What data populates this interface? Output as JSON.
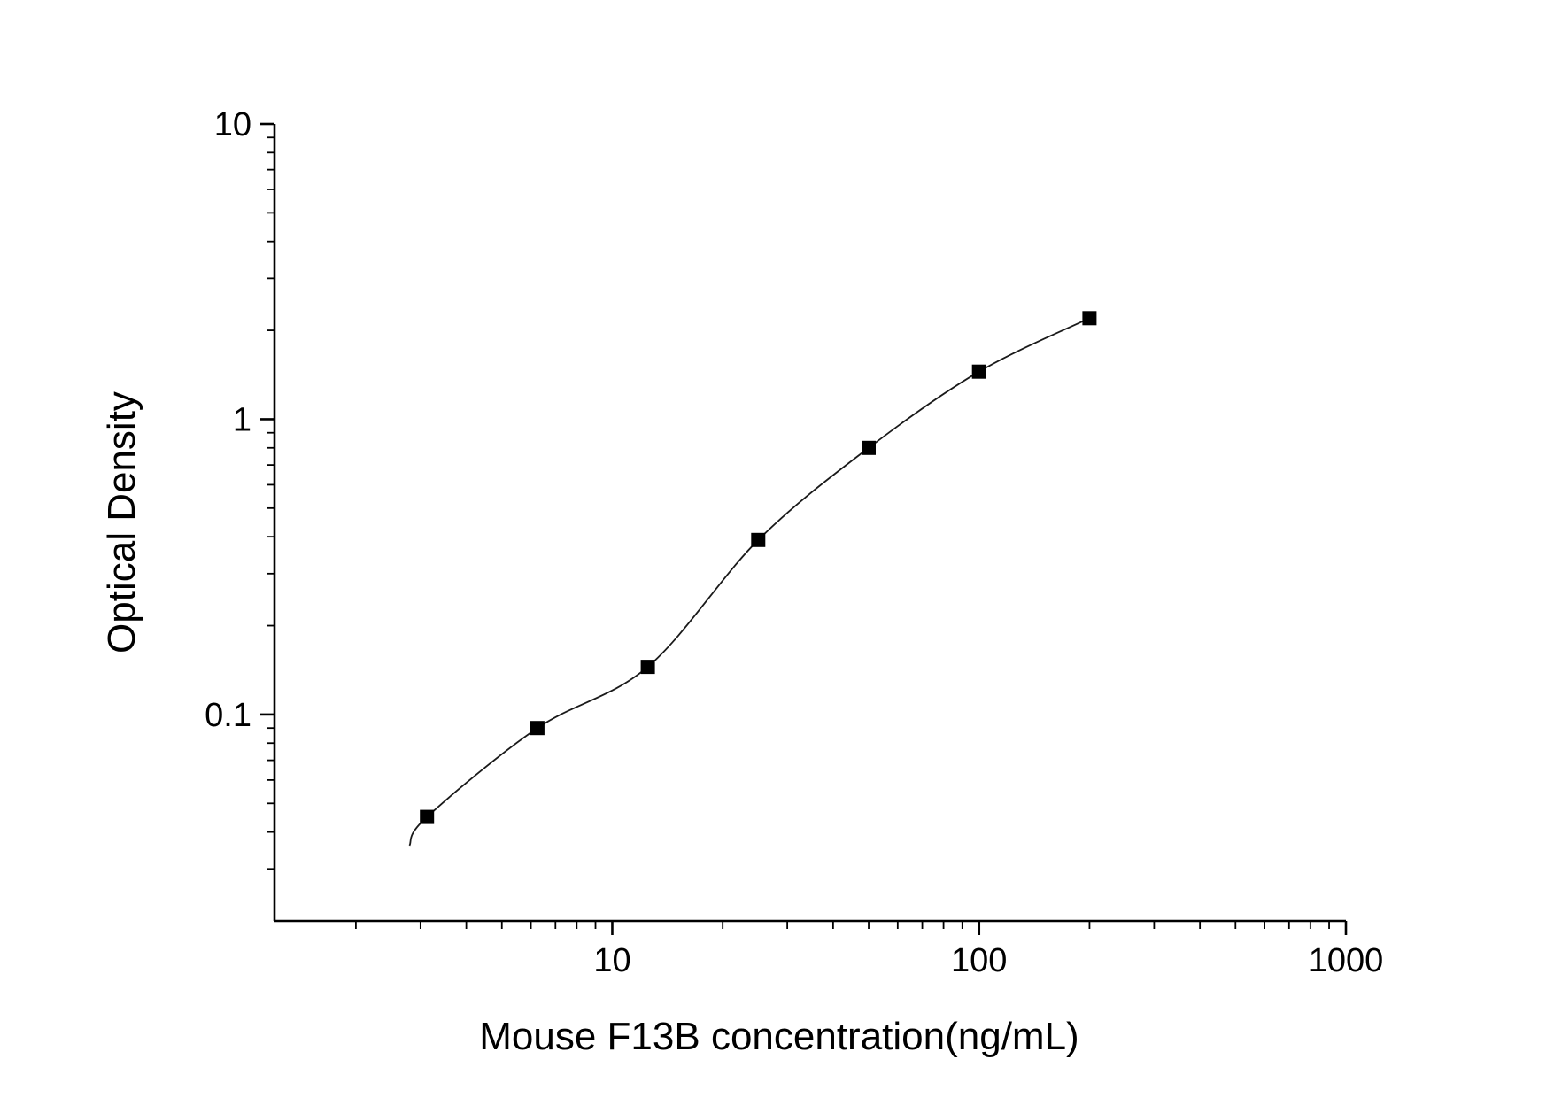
{
  "chart_data": {
    "type": "scatter",
    "title": "",
    "xlabel": "Mouse F13B concentration(ng/mL)",
    "ylabel": "Optical Density",
    "x_scale": "log",
    "y_scale": "log",
    "xlim": [
      1.2,
      1000
    ],
    "ylim": [
      0.02,
      10
    ],
    "grid": false,
    "legend": false,
    "x_ticks": [
      {
        "value": 10,
        "label": "10"
      },
      {
        "value": 100,
        "label": "100"
      },
      {
        "value": 1000,
        "label": "1000"
      }
    ],
    "y_ticks": [
      {
        "value": 0.1,
        "label": "0.1"
      },
      {
        "value": 1,
        "label": "1"
      },
      {
        "value": 10,
        "label": "10"
      }
    ],
    "points": [
      {
        "x": 3.125,
        "y": 0.045
      },
      {
        "x": 6.25,
        "y": 0.09
      },
      {
        "x": 12.5,
        "y": 0.145
      },
      {
        "x": 25,
        "y": 0.39
      },
      {
        "x": 50,
        "y": 0.8
      },
      {
        "x": 100,
        "y": 1.45
      },
      {
        "x": 200,
        "y": 2.2
      }
    ],
    "fit_curve_start": {
      "x": 2.8,
      "y": 0.036
    },
    "marker": {
      "shape": "square",
      "color": "#000000",
      "size": 16
    },
    "line_color": "#1a1a1a",
    "axis_color": "#000000",
    "background": "#ffffff"
  }
}
